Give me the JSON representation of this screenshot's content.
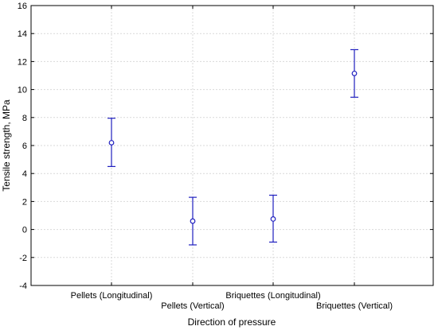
{
  "chart_data": {
    "type": "scatter",
    "categories": [
      "Pellets (Longitudinal)",
      "Pellets (Vertical)",
      "Briquettes (Longitudinal)",
      "Briquettes (Vertical)"
    ],
    "label_row": [
      0,
      1,
      0,
      1
    ],
    "values": [
      6.2,
      0.6,
      0.75,
      11.15
    ],
    "error_low": [
      4.5,
      -1.1,
      -0.9,
      9.45
    ],
    "error_high": [
      7.95,
      2.3,
      2.45,
      12.85
    ],
    "xlabel": "Direction of pressure",
    "ylabel": "Tensile strength, MPa",
    "ylim": [
      -4,
      16
    ],
    "yticks": [
      -4,
      -2,
      0,
      2,
      4,
      6,
      8,
      10,
      12,
      14,
      16
    ],
    "grid": true,
    "marker": "circle",
    "color": "#1f1fbf"
  }
}
